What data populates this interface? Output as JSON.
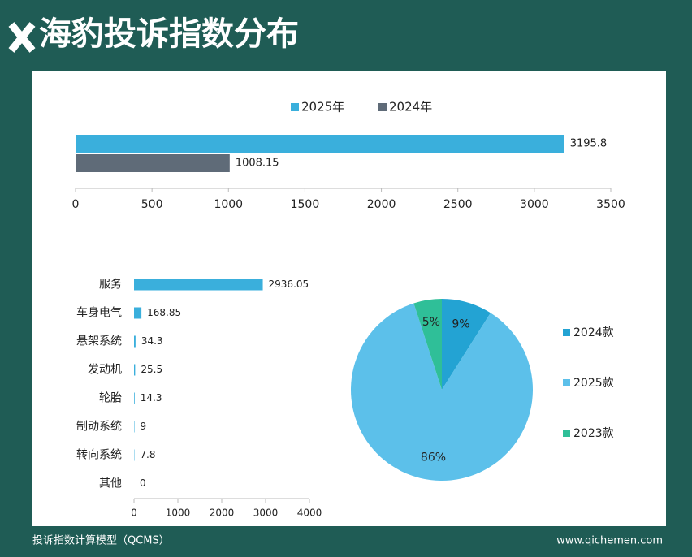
{
  "header": {
    "title": "海豹投诉指数分布"
  },
  "footer": {
    "left": "投诉指数计算模型（QCMS）",
    "right": "www.qichemen.com"
  },
  "chart_data": [
    {
      "type": "bar",
      "orientation": "horizontal",
      "categories": [
        null
      ],
      "series": [
        {
          "name": "2025年",
          "color": "#3aafdc",
          "values": [
            3195.8
          ]
        },
        {
          "name": "2024年",
          "color": "#5f6b78",
          "values": [
            1008.15
          ]
        }
      ],
      "xlim": [
        0,
        3500
      ],
      "xticks": [
        0,
        500,
        1000,
        1500,
        2000,
        2500,
        3000,
        3500
      ],
      "legend": "top"
    },
    {
      "type": "bar",
      "orientation": "horizontal",
      "categories": [
        "服务",
        "车身电气",
        "悬架系统",
        "发动机",
        "轮胎",
        "制动系统",
        "转向系统",
        "其他"
      ],
      "values": [
        2936.05,
        168.85,
        34.3,
        25.5,
        14.3,
        9,
        7.8,
        0
      ],
      "color": "#3aafdc",
      "xlim": [
        0,
        4000
      ],
      "xticks": [
        0,
        1000,
        2000,
        3000,
        4000
      ]
    },
    {
      "type": "pie",
      "categories": [
        "2024款",
        "2025款",
        "2023款"
      ],
      "values": [
        9,
        86,
        5
      ],
      "value_labels": [
        "9%",
        "86%",
        "5%"
      ],
      "colors": [
        "#23a3d3",
        "#5cc0ea",
        "#2fbf98"
      ],
      "legend": "right"
    }
  ]
}
